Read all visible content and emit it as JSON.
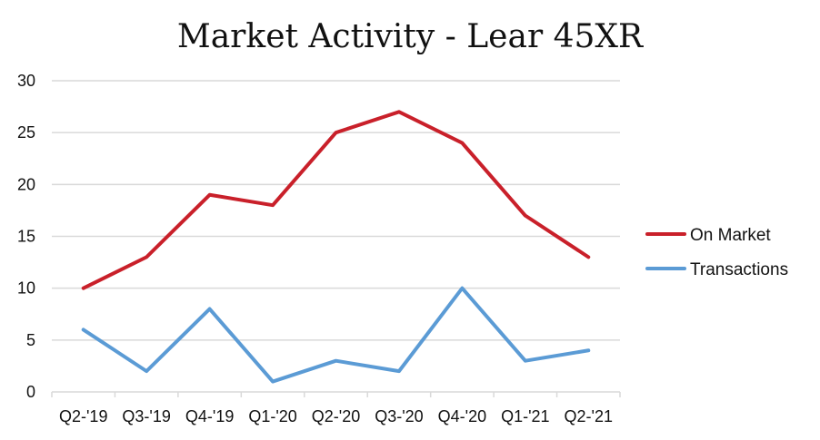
{
  "chart_data": {
    "type": "line",
    "title": "Market Activity - Lear 45XR",
    "xlabel": "",
    "ylabel": "",
    "categories": [
      "Q2-'19",
      "Q3-'19",
      "Q4-'19",
      "Q1-'20",
      "Q2-'20",
      "Q3-'20",
      "Q4-'20",
      "Q1-'21",
      "Q2-'21"
    ],
    "ylim": [
      0,
      30
    ],
    "yticks": [
      0,
      5,
      10,
      15,
      20,
      25,
      30
    ],
    "grid": true,
    "legend_position": "right",
    "series": [
      {
        "name": "On Market",
        "color": "#c9202a",
        "values": [
          10,
          13,
          19,
          18,
          25,
          27,
          24,
          17,
          13
        ]
      },
      {
        "name": "Transactions",
        "color": "#5b9bd5",
        "values": [
          6,
          2,
          8,
          1,
          3,
          2,
          10,
          3,
          4
        ]
      }
    ]
  }
}
